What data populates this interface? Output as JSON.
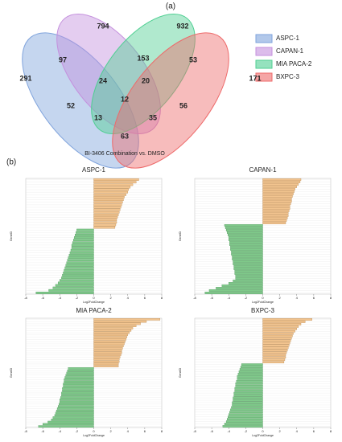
{
  "panel_a": "(a)",
  "panel_b": "(b)",
  "chart_data": [
    {
      "type": "venn",
      "caption": "BI-3406 Combination vs. DMSO",
      "sets": [
        {
          "name": "ASPC-1",
          "color": "#7fa3dc"
        },
        {
          "name": "CAPAN-1",
          "color": "#c490dd"
        },
        {
          "name": "MIA PACA-2",
          "color": "#4fcf92"
        },
        {
          "name": "BXPC-3",
          "color": "#ee6a6a"
        }
      ],
      "region_values": [
        794,
        932,
        97,
        153,
        53,
        291,
        171,
        24,
        20,
        12,
        52,
        56,
        13,
        35,
        63
      ]
    },
    {
      "type": "bar",
      "title": "ASPC-1",
      "xlabel": "Log2FoldChange",
      "ylabel": "GeneID",
      "xlim": [
        -8,
        8
      ],
      "xticks": [
        -8,
        -6,
        -4,
        -2,
        0,
        2,
        4,
        6,
        8
      ],
      "grid": true,
      "positive_color": "#f2c48f",
      "negative_color": "#7fc98a",
      "values": [
        5.3,
        5.0,
        4.6,
        4.3,
        4.1,
        4.0,
        3.8,
        3.6,
        3.5,
        3.4,
        3.3,
        3.2,
        3.1,
        3.0,
        2.9,
        2.8,
        2.7,
        2.7,
        2.6,
        2.5,
        -2.0,
        -2.1,
        -2.2,
        -2.3,
        -2.4,
        -2.5,
        -2.6,
        -2.6,
        -2.7,
        -2.8,
        -2.9,
        -3.0,
        -3.1,
        -3.2,
        -3.3,
        -3.4,
        -3.5,
        -3.6,
        -3.7,
        -3.8,
        -4.0,
        -4.2,
        -4.5,
        -4.8,
        -5.3,
        -6.8
      ]
    },
    {
      "type": "bar",
      "title": "CAPAN-1",
      "xlabel": "Log2FoldChange",
      "ylabel": "GeneID",
      "xlim": [
        -8,
        8
      ],
      "xticks": [
        -8,
        -6,
        -4,
        -2,
        0,
        2,
        4,
        6,
        8
      ],
      "grid": true,
      "positive_color": "#f2c48f",
      "negative_color": "#7fc98a",
      "values": [
        4.5,
        4.4,
        4.2,
        4.0,
        3.8,
        3.7,
        3.6,
        3.5,
        3.4,
        3.4,
        3.3,
        3.2,
        3.2,
        3.1,
        3.0,
        3.0,
        2.9,
        2.8,
        2.7,
        -4.5,
        -4.4,
        -4.3,
        -4.2,
        -4.1,
        -4.0,
        -4.0,
        -3.9,
        -3.9,
        -3.8,
        -3.8,
        -3.7,
        -3.7,
        -3.6,
        -3.6,
        -3.5,
        -3.5,
        -3.4,
        -3.4,
        -3.3,
        -3.3,
        -3.2,
        -3.2,
        -3.5,
        -4.0,
        -4.8,
        -5.5,
        -6.3,
        -6.8
      ]
    },
    {
      "type": "bar",
      "title": "MIA PACA-2",
      "xlabel": "Log2FoldChange",
      "ylabel": "GeneID",
      "xlim": [
        -8,
        8
      ],
      "xticks": [
        -8,
        -6,
        -4,
        -2,
        0,
        2,
        4,
        6,
        8
      ],
      "grid": true,
      "positive_color": "#f2c48f",
      "negative_color": "#7fc98a",
      "values": [
        7.8,
        6.2,
        5.5,
        5.0,
        4.6,
        4.4,
        4.2,
        4.0,
        3.9,
        3.8,
        3.7,
        3.6,
        3.5,
        3.4,
        3.3,
        3.3,
        3.2,
        3.1,
        3.0,
        3.0,
        2.9,
        2.9,
        -3.0,
        -3.1,
        -3.2,
        -3.3,
        -3.4,
        -3.5,
        -3.5,
        -3.6,
        -3.6,
        -3.7,
        -3.7,
        -3.8,
        -3.8,
        -3.9,
        -4.0,
        -4.0,
        -4.1,
        -4.2,
        -4.3,
        -4.4,
        -4.5,
        -4.6,
        -4.8,
        -5.0,
        -5.4,
        -6.0,
        -6.5
      ]
    },
    {
      "type": "bar",
      "title": "BXPC-3",
      "xlabel": "Log2FoldChange",
      "ylabel": "GeneID",
      "xlim": [
        -8,
        8
      ],
      "xticks": [
        -8,
        -6,
        -4,
        -2,
        0,
        2,
        4,
        6,
        8
      ],
      "grid": true,
      "positive_color": "#f2c48f",
      "negative_color": "#7fc98a",
      "values": [
        5.8,
        5.0,
        4.5,
        4.2,
        4.0,
        3.8,
        3.6,
        3.5,
        3.4,
        3.3,
        3.2,
        3.1,
        3.0,
        2.9,
        2.8,
        2.7,
        2.7,
        2.6,
        2.5,
        -2.5,
        -2.6,
        -2.7,
        -2.8,
        -2.9,
        -3.0,
        -3.0,
        -3.1,
        -3.2,
        -3.2,
        -3.3,
        -3.3,
        -3.4,
        -3.4,
        -3.5,
        -3.5,
        -3.6,
        -3.6,
        -3.7,
        -3.8,
        -3.9,
        -4.0,
        -4.1,
        -4.2,
        -4.3,
        -4.5,
        -4.7
      ]
    }
  ]
}
